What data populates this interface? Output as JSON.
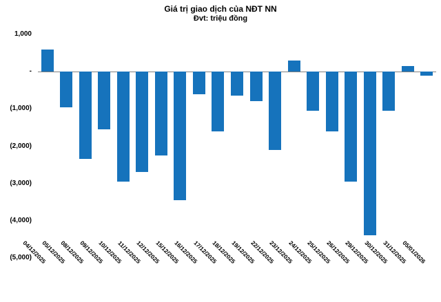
{
  "chart_data": {
    "type": "bar",
    "title": "Giá trị giao dịch của NĐT NN",
    "subtitle": "Đvt: triệu đồng",
    "categories": [
      "04/12/2025",
      "05/12/2025",
      "08/12/2025",
      "09/12/2025",
      "10/12/2025",
      "11/12/2025",
      "12/12/2025",
      "15/12/2025",
      "16/12/2025",
      "17/12/2025",
      "18/12/2025",
      "19/12/2025",
      "22/12/2025",
      "23/12/2025",
      "24/12/2025",
      "25/12/2025",
      "26/12/2025",
      "29/12/2025",
      "30/12/2025",
      "31/12/2025",
      "05/01/2026"
    ],
    "values": [
      600,
      -950,
      -2350,
      -1550,
      -2950,
      -2700,
      -2250,
      -3450,
      -600,
      -1600,
      -650,
      -800,
      -2100,
      300,
      -1050,
      -1600,
      -2950,
      -4400,
      -1050,
      150,
      -100
    ],
    "xlabel": "",
    "ylabel": "",
    "ylim": [
      -5000,
      1000
    ],
    "ytick_step": 1000,
    "ytick_labels": [
      "1,000",
      "-",
      "(1,000)",
      "(2,000)",
      "(3,000)",
      "(4,000)",
      "(5,000)"
    ],
    "bar_color": "#1673BC",
    "axis_line_color": "#808080",
    "grid": false,
    "legend": "none"
  }
}
